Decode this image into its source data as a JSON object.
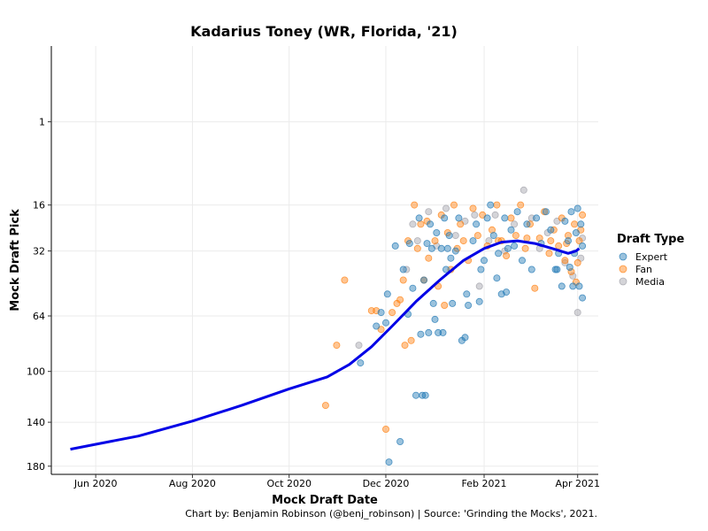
{
  "chart_data": {
    "type": "scatter",
    "title": "Kadarius Toney (WR, Florida, '21)",
    "xlabel": "Mock Draft Date",
    "ylabel": "Mock Draft Pick",
    "x_axis": {
      "type": "date",
      "range": [
        "2020-05-04",
        "2021-04-14"
      ],
      "ticks": [
        {
          "date": "2020-06-01",
          "label": "Jun 2020"
        },
        {
          "date": "2020-08-01",
          "label": "Aug 2020"
        },
        {
          "date": "2020-10-01",
          "label": "Oct 2020"
        },
        {
          "date": "2020-12-01",
          "label": "Dec 2020"
        },
        {
          "date": "2021-02-01",
          "label": "Feb 2021"
        },
        {
          "date": "2021-04-01",
          "label": "Apr 2021"
        }
      ]
    },
    "y_axis": {
      "scale": "sqrt",
      "reversed": true,
      "range": [
        -3,
        188
      ],
      "ticks": [
        1,
        16,
        32,
        64,
        100,
        140,
        180
      ]
    },
    "grid": true,
    "legend": {
      "title": "Draft Type",
      "position": "right",
      "entries": [
        {
          "label": "Expert",
          "color": "#1f77b4"
        },
        {
          "label": "Fan",
          "color": "#ff7f0e"
        },
        {
          "label": "Media",
          "color": "#a0a0a8"
        }
      ]
    },
    "trend": {
      "color": "#0000e6",
      "points": [
        [
          "2020-05-16",
          164
        ],
        [
          "2020-06-28",
          152
        ],
        [
          "2020-08-01",
          139
        ],
        [
          "2020-09-01",
          126
        ],
        [
          "2020-10-01",
          113
        ],
        [
          "2020-10-25",
          104
        ],
        [
          "2020-11-08",
          95
        ],
        [
          "2020-11-22",
          83
        ],
        [
          "2020-12-05",
          70
        ],
        [
          "2020-12-20",
          56
        ],
        [
          "2021-01-04",
          45
        ],
        [
          "2021-01-19",
          36
        ],
        [
          "2021-02-01",
          31
        ],
        [
          "2021-02-12",
          28.5
        ],
        [
          "2021-02-22",
          28
        ],
        [
          "2021-03-05",
          29
        ],
        [
          "2021-03-16",
          31
        ],
        [
          "2021-03-26",
          33
        ],
        [
          "2021-03-31",
          32
        ],
        [
          "2021-04-02",
          31
        ]
      ]
    },
    "series": [
      {
        "name": "Expert",
        "color": "#1f77b4",
        "points": [
          [
            "2020-11-15",
            94
          ],
          [
            "2020-11-25",
            70
          ],
          [
            "2020-11-28",
            62
          ],
          [
            "2020-12-01",
            68
          ],
          [
            "2020-12-02",
            52
          ],
          [
            "2020-12-03",
            176
          ],
          [
            "2020-12-07",
            30
          ],
          [
            "2020-12-10",
            157
          ],
          [
            "2020-12-12",
            40
          ],
          [
            "2020-12-15",
            63
          ],
          [
            "2020-12-16",
            29
          ],
          [
            "2020-12-18",
            49
          ],
          [
            "2020-12-20",
            118
          ],
          [
            "2020-12-22",
            20
          ],
          [
            "2020-12-23",
            75
          ],
          [
            "2020-12-24",
            118
          ],
          [
            "2020-12-25",
            45
          ],
          [
            "2020-12-26",
            118
          ],
          [
            "2020-12-27",
            29
          ],
          [
            "2020-12-28",
            74
          ],
          [
            "2020-12-29",
            22
          ],
          [
            "2020-12-30",
            31
          ],
          [
            "2020-12-31",
            57
          ],
          [
            "2021-01-01",
            66
          ],
          [
            "2021-01-02",
            25
          ],
          [
            "2021-01-03",
            74
          ],
          [
            "2021-01-05",
            31
          ],
          [
            "2021-01-06",
            74
          ],
          [
            "2021-01-07",
            20
          ],
          [
            "2021-01-08",
            40
          ],
          [
            "2021-01-10",
            26
          ],
          [
            "2021-01-11",
            35
          ],
          [
            "2021-01-12",
            57
          ],
          [
            "2021-01-14",
            32
          ],
          [
            "2021-01-16",
            20
          ],
          [
            "2021-01-18",
            79
          ],
          [
            "2021-01-20",
            77
          ],
          [
            "2021-01-22",
            58
          ],
          [
            "2021-01-25",
            28
          ],
          [
            "2021-01-27",
            22
          ],
          [
            "2021-02-01",
            36
          ],
          [
            "2021-02-03",
            20
          ],
          [
            "2021-02-05",
            16
          ],
          [
            "2021-02-07",
            26
          ],
          [
            "2021-02-09",
            44
          ],
          [
            "2021-02-10",
            33
          ],
          [
            "2021-02-12",
            52
          ],
          [
            "2021-02-14",
            20
          ],
          [
            "2021-02-16",
            31
          ],
          [
            "2021-02-18",
            24
          ],
          [
            "2021-02-20",
            30
          ],
          [
            "2021-02-22",
            18
          ],
          [
            "2021-02-25",
            36
          ],
          [
            "2021-02-28",
            22
          ],
          [
            "2021-03-03",
            40
          ],
          [
            "2021-03-06",
            20
          ],
          [
            "2021-03-09",
            29
          ],
          [
            "2021-03-12",
            18
          ],
          [
            "2021-03-15",
            24
          ],
          [
            "2021-03-18",
            40
          ],
          [
            "2021-03-20",
            33
          ],
          [
            "2021-03-22",
            48
          ],
          [
            "2021-03-24",
            21
          ],
          [
            "2021-03-26",
            28
          ],
          [
            "2021-03-28",
            18
          ],
          [
            "2021-03-30",
            33
          ],
          [
            "2021-04-01",
            17
          ],
          [
            "2021-04-02",
            48
          ],
          [
            "2021-04-03",
            22
          ],
          [
            "2021-04-04",
            54
          ],
          [
            "2021-04-04",
            30
          ],
          [
            "2021-03-29",
            48
          ],
          [
            "2021-03-27",
            39
          ],
          [
            "2021-03-19",
            40
          ],
          [
            "2021-01-21",
            52
          ],
          [
            "2021-01-29",
            56
          ],
          [
            "2021-02-15",
            51
          ],
          [
            "2021-01-30",
            40
          ],
          [
            "2021-01-09",
            31
          ],
          [
            "2021-03-31",
            25
          ]
        ]
      },
      {
        "name": "Fan",
        "color": "#ff7f0e",
        "points": [
          [
            "2020-10-24",
            126
          ],
          [
            "2020-10-31",
            82
          ],
          [
            "2020-11-05",
            45
          ],
          [
            "2020-11-22",
            61
          ],
          [
            "2020-11-25",
            61
          ],
          [
            "2020-11-28",
            72
          ],
          [
            "2020-12-01",
            146
          ],
          [
            "2020-12-05",
            62
          ],
          [
            "2020-12-08",
            57
          ],
          [
            "2020-12-10",
            55
          ],
          [
            "2020-12-12",
            45
          ],
          [
            "2020-12-13",
            82
          ],
          [
            "2020-12-15",
            28
          ],
          [
            "2020-12-17",
            79
          ],
          [
            "2020-12-19",
            16
          ],
          [
            "2020-12-21",
            31
          ],
          [
            "2020-12-23",
            22
          ],
          [
            "2020-12-25",
            45
          ],
          [
            "2020-12-27",
            21
          ],
          [
            "2020-12-28",
            35
          ],
          [
            "2021-01-01",
            28
          ],
          [
            "2021-01-03",
            48
          ],
          [
            "2021-01-05",
            19
          ],
          [
            "2021-01-07",
            58
          ],
          [
            "2021-01-09",
            25
          ],
          [
            "2021-01-11",
            40
          ],
          [
            "2021-01-13",
            16
          ],
          [
            "2021-01-15",
            31
          ],
          [
            "2021-01-17",
            22
          ],
          [
            "2021-01-19",
            28
          ],
          [
            "2021-01-22",
            36
          ],
          [
            "2021-01-25",
            17
          ],
          [
            "2021-01-28",
            26
          ],
          [
            "2021-01-31",
            19
          ],
          [
            "2021-02-03",
            30
          ],
          [
            "2021-02-06",
            24
          ],
          [
            "2021-02-09",
            16
          ],
          [
            "2021-02-12",
            28
          ],
          [
            "2021-02-15",
            34
          ],
          [
            "2021-02-18",
            20
          ],
          [
            "2021-02-21",
            26
          ],
          [
            "2021-02-24",
            16
          ],
          [
            "2021-02-27",
            31
          ],
          [
            "2021-03-02",
            22
          ],
          [
            "2021-03-05",
            49
          ],
          [
            "2021-03-08",
            27
          ],
          [
            "2021-03-11",
            18
          ],
          [
            "2021-03-14",
            33
          ],
          [
            "2021-03-17",
            24
          ],
          [
            "2021-03-20",
            30
          ],
          [
            "2021-03-22",
            20
          ],
          [
            "2021-03-24",
            36
          ],
          [
            "2021-03-26",
            26
          ],
          [
            "2021-03-28",
            41
          ],
          [
            "2021-03-30",
            22
          ],
          [
            "2021-03-31",
            46
          ],
          [
            "2021-04-02",
            28
          ],
          [
            "2021-04-03",
            24
          ],
          [
            "2021-04-04",
            19
          ],
          [
            "2021-04-01",
            37
          ],
          [
            "2021-03-25",
            29
          ],
          [
            "2021-03-15",
            28
          ],
          [
            "2021-02-28",
            27
          ],
          [
            "2021-02-10",
            28
          ]
        ]
      },
      {
        "name": "Media",
        "color": "#a0a0a8",
        "points": [
          [
            "2020-11-14",
            82
          ],
          [
            "2020-12-14",
            40
          ],
          [
            "2020-12-18",
            22
          ],
          [
            "2020-12-21",
            28
          ],
          [
            "2020-12-28",
            18
          ],
          [
            "2021-01-02",
            30
          ],
          [
            "2021-01-08",
            17
          ],
          [
            "2021-01-14",
            26
          ],
          [
            "2021-01-20",
            21
          ],
          [
            "2021-01-26",
            19
          ],
          [
            "2021-01-29",
            48
          ],
          [
            "2021-02-04",
            28
          ],
          [
            "2021-02-08",
            19
          ],
          [
            "2021-02-14",
            32
          ],
          [
            "2021-02-20",
            22
          ],
          [
            "2021-02-26",
            12
          ],
          [
            "2021-03-03",
            20
          ],
          [
            "2021-03-08",
            31
          ],
          [
            "2021-03-13",
            25
          ],
          [
            "2021-03-19",
            21
          ],
          [
            "2021-03-24",
            37
          ],
          [
            "2021-03-29",
            43
          ],
          [
            "2021-04-01",
            62
          ],
          [
            "2021-04-03",
            35
          ],
          [
            "2021-04-04",
            27
          ]
        ]
      }
    ]
  },
  "caption": "Chart by: Benjamin Robinson (@benj_robinson) | Source: 'Grinding the Mocks', 2021."
}
